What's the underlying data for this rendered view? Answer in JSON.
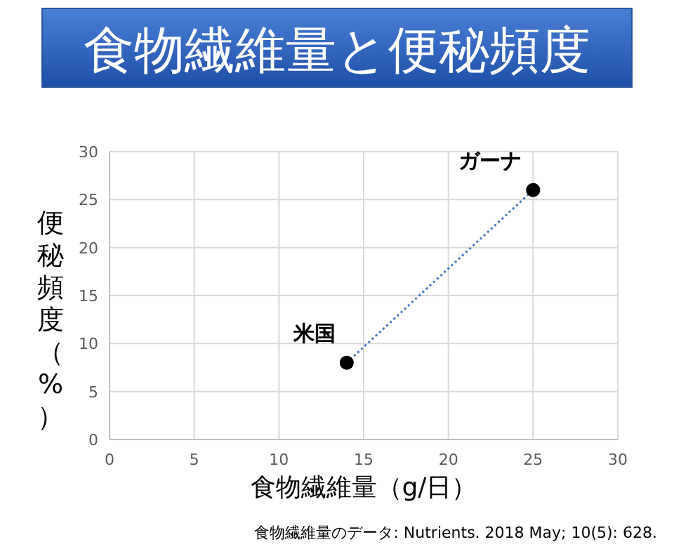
{
  "chart_data": {
    "type": "scatter",
    "title": "食物繊維量と便秘頻度",
    "xlabel": "食物繊維量（g/日）",
    "ylabel": "便秘頻度（%）",
    "xlim": [
      0,
      30
    ],
    "xticks": [
      0,
      5,
      10,
      15,
      20,
      25,
      30
    ],
    "ylim": [
      0,
      30
    ],
    "yticks": [
      0,
      5,
      10,
      15,
      20,
      25,
      30
    ],
    "grid": true,
    "x": [
      14,
      25
    ],
    "series": [
      {
        "type": "line",
        "values": [
          8,
          26
        ],
        "color": "#4472c4",
        "line_style": "dotted",
        "marker": "none"
      },
      {
        "type": "scatter",
        "values": [
          8,
          26
        ],
        "color": "#000000",
        "marker": "circle"
      }
    ],
    "annotations": [
      {
        "text": "米国",
        "x": 14,
        "y": 8
      },
      {
        "text": "ガーナ",
        "x": 25,
        "y": 26
      },
      "食物繊維量のデータ: Nutrients. 2018 May; 10(5): 628."
    ]
  }
}
